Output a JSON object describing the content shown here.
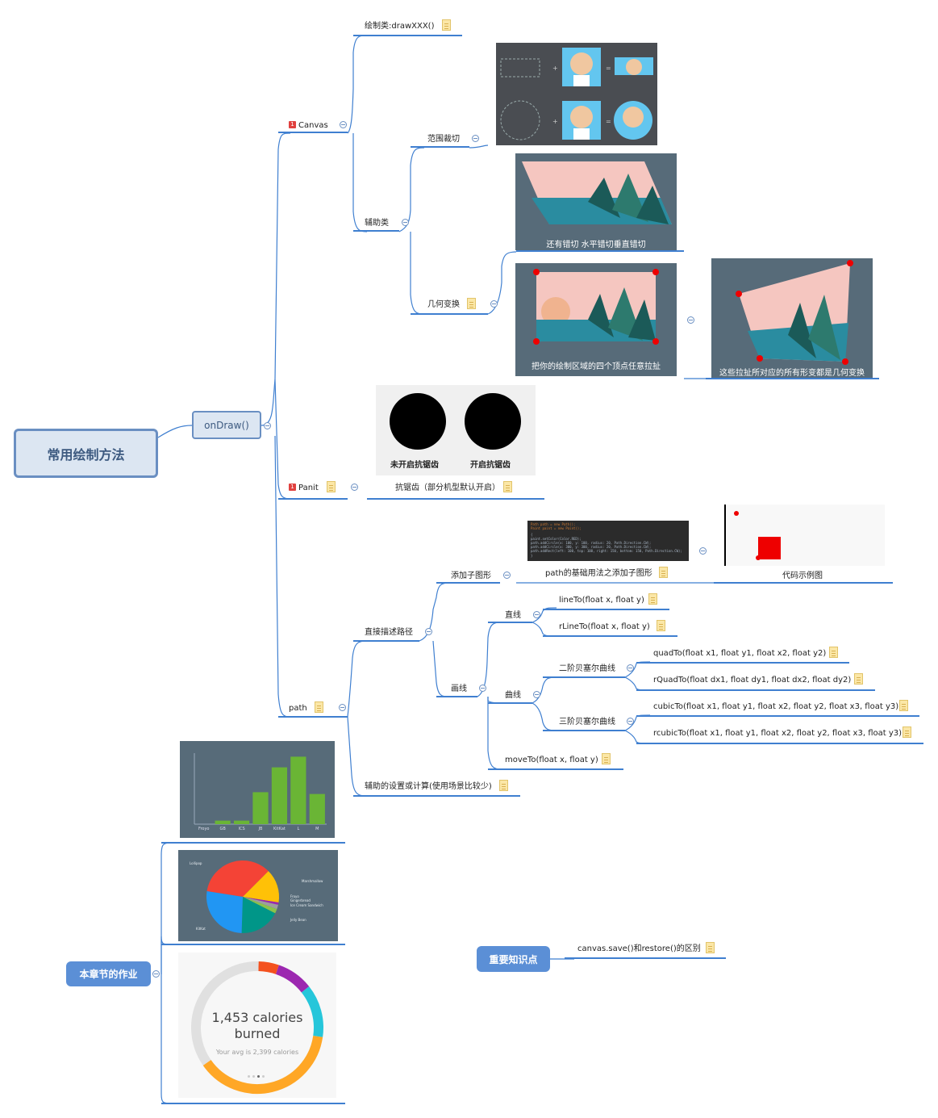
{
  "root": {
    "title": "常用绘制方法"
  },
  "ondraw": {
    "label": "onDraw()"
  },
  "canvas": {
    "label": "Canvas",
    "flag": "1",
    "draw_class": "绘制类:drawXXX()",
    "helper": "辅助类",
    "clip": "范围裁切",
    "geom": "几何变换",
    "skew_caption": "还有错切 水平错切垂直错切",
    "stretch_caption": "把你的绘制区域的四个顶点任意拉扯",
    "transform_caption": "这些拉扯所对应的所有形变都是几何变换"
  },
  "paint": {
    "label": "Panit",
    "flag": "1",
    "antialias": "抗锯齿（部分机型默认开启）",
    "aa_off": "未开启抗锯齿",
    "aa_on": "开启抗锯齿"
  },
  "path": {
    "label": "path",
    "direct": "直接描述路径",
    "helper_calc": "辅助的设置或计算(使用场景比较少)",
    "add_sub": "添加子图形",
    "basic": "path的基础用法之添加子图形",
    "example": "代码示例图",
    "draw_line": "画线",
    "straight": "直线",
    "curve": "曲线",
    "lineTo": "lineTo(float x, float y)",
    "rLineTo": "rLineTo(float x, float y)",
    "quad": "二阶贝塞尔曲线",
    "cubic": "三阶贝塞尔曲线",
    "quadTo": "quadTo(float x1, float y1, float x2, float y2)",
    "rQuadTo": "rQuadTo(float dx1, float dy1, float dx2, float dy2)",
    "cubicTo": "cubicTo(float x1, float y1, float x2, float y2, float x3, float y3)",
    "rCubicTo": "rcubicTo(float x1, float y1, float x2, float y2, float x3, float y3)",
    "moveTo": "moveTo(float x, float y)",
    "code": [
      "Path path = new Path();",
      "Paint paint = new Paint();",
      "{",
      "  paint.setColor(Color.RED);",
      "  path.addCircle(x: 100, y: 100, radius: 20, Path.Direction.CW);",
      "  path.addCircle(x: 300, y: 300, radius: 20, Path.Direction.CW);",
      "  path.addRect(left: 100, top: 100, right: 150, bottom: 150, Path.Direction.CW);",
      "}"
    ]
  },
  "homework": {
    "label": "本章节的作业",
    "bar_chart": {
      "type": "bar",
      "categories": [
        "Froyo",
        "GB",
        "ICS",
        "JB",
        "KitKat",
        "L",
        "M"
      ],
      "values": [
        0,
        4,
        4,
        36,
        64,
        76,
        34
      ],
      "bar_color": "#6ab535",
      "bg": "#576b79"
    },
    "pie_chart": {
      "type": "pie",
      "labels": [
        "Lollipop",
        "Marshmallow",
        "Froyo",
        "Gingerbread",
        "Ice Cream Sandwich",
        "Jelly Bean",
        "KitKat"
      ],
      "values": [
        35,
        15,
        1,
        2,
        2,
        18,
        27
      ],
      "colors": [
        "#f44336",
        "#ffc107",
        "#9c27b0",
        "#9e9e9e",
        "#8bc34a",
        "#009688",
        "#2196f3"
      ]
    },
    "ring": {
      "value_text": "1,453 calories",
      "value_text2": "burned",
      "sub_text": "Your avg is 2,399 calories",
      "segments": [
        {
          "color": "#f4511e",
          "fraction": 0.05
        },
        {
          "color": "#9c27b0",
          "fraction": 0.09
        },
        {
          "color": "#26c6da",
          "fraction": 0.13
        },
        {
          "color": "#ffa726",
          "fraction": 0.38
        },
        {
          "color": "#e0e0e0",
          "fraction": 0.35
        }
      ]
    }
  },
  "key": {
    "label": "重要知识点",
    "save_restore": "canvas.save()和restore()的区别"
  },
  "colors": {
    "line": "#3f7fd0",
    "node_bg": "#dce6f2",
    "node_border": "#6a8fc2",
    "pill": "#5b8fd6",
    "flag": "#e0413f"
  }
}
